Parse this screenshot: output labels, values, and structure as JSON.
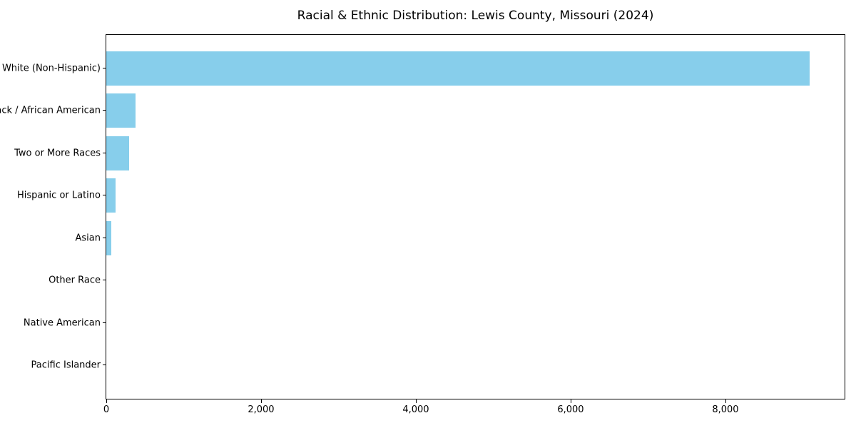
{
  "chart_data": {
    "type": "bar",
    "orientation": "horizontal",
    "title": "Racial & Ethnic Distribution: Lewis County, Missouri (2024)",
    "categories": [
      "White (Non-Hispanic)",
      "Black / African American",
      "Two or More Races",
      "Hispanic or Latino",
      "Asian",
      "Other Race",
      "Native American",
      "Pacific Islander"
    ],
    "values": [
      9085,
      380,
      295,
      120,
      60,
      0,
      0,
      0
    ],
    "xlabel": "",
    "ylabel": "",
    "xlim": [
      0,
      9540
    ],
    "x_ticks": [
      0,
      2000,
      4000,
      6000,
      8000
    ],
    "x_tick_labels": [
      "0",
      "2,000",
      "4,000",
      "6,000",
      "8,000"
    ],
    "bar_color": "#87CEEB",
    "axis_color": "#000000",
    "background_color": "#ffffff",
    "grid": false,
    "legend_position": "none"
  }
}
